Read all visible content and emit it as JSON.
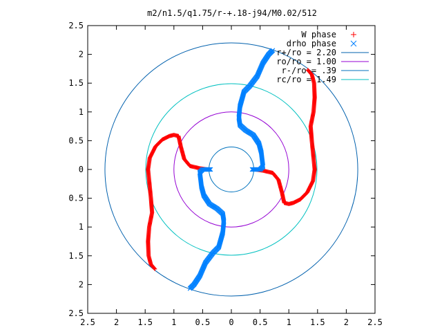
{
  "chart_data": {
    "type": "scatter",
    "title": "m2/n1.5/q1.75/r-+.18-j94/M0.02/512",
    "xlabel": "",
    "ylabel": "",
    "xlim": [
      -2.5,
      2.5
    ],
    "ylim": [
      -2.5,
      2.5
    ],
    "x_ticks": [
      "2.5",
      "2",
      "1.5",
      "1",
      "0.5",
      "0",
      "0.5",
      "1",
      "1.5",
      "2",
      "2.5"
    ],
    "y_ticks": [
      "2.5",
      "2",
      "1.5",
      "1",
      "0.5",
      "0",
      "0.5",
      "1",
      "1.5",
      "2",
      "2.5"
    ],
    "grid": false,
    "legend_position": "top-right",
    "series": [
      {
        "name": "W phase",
        "marker": "+",
        "color": "#ff0000",
        "arms": [
          [
            [
              -0.42,
              0
            ],
            [
              -0.55,
              0.02
            ],
            [
              -0.72,
              0.06
            ],
            [
              -0.82,
              0.18
            ],
            [
              -0.88,
              0.4
            ],
            [
              -0.92,
              0.58
            ],
            [
              -1.0,
              0.6
            ],
            [
              -1.08,
              0.58
            ],
            [
              -1.2,
              0.52
            ],
            [
              -1.32,
              0.4
            ],
            [
              -1.42,
              0.2
            ],
            [
              -1.45,
              0
            ],
            [
              -1.43,
              -0.2
            ],
            [
              -1.4,
              -0.5
            ],
            [
              -1.38,
              -0.75
            ],
            [
              -1.43,
              -1.0
            ],
            [
              -1.45,
              -1.25
            ],
            [
              -1.44,
              -1.5
            ],
            [
              -1.4,
              -1.65
            ],
            [
              -1.33,
              -1.73
            ]
          ],
          [
            [
              0.42,
              0
            ],
            [
              0.55,
              -0.02
            ],
            [
              0.72,
              -0.06
            ],
            [
              0.82,
              -0.18
            ],
            [
              0.88,
              -0.4
            ],
            [
              0.92,
              -0.58
            ],
            [
              1.0,
              -0.6
            ],
            [
              1.08,
              -0.58
            ],
            [
              1.2,
              -0.52
            ],
            [
              1.32,
              -0.4
            ],
            [
              1.42,
              -0.2
            ],
            [
              1.45,
              0
            ],
            [
              1.43,
              0.2
            ],
            [
              1.4,
              0.5
            ],
            [
              1.38,
              0.75
            ],
            [
              1.43,
              1.0
            ],
            [
              1.45,
              1.25
            ],
            [
              1.44,
              1.5
            ],
            [
              1.4,
              1.65
            ],
            [
              1.33,
              1.73
            ]
          ]
        ]
      },
      {
        "name": "drho phase",
        "marker": "x",
        "color": "#0080ff",
        "arms": [
          [
            [
              0.72,
              2.07
            ],
            [
              0.65,
              2.0
            ],
            [
              0.55,
              1.85
            ],
            [
              0.45,
              1.62
            ],
            [
              0.32,
              1.45
            ],
            [
              0.22,
              1.35
            ],
            [
              0.15,
              1.1
            ],
            [
              0.13,
              0.9
            ],
            [
              0.15,
              0.77
            ],
            [
              0.25,
              0.68
            ],
            [
              0.38,
              0.6
            ],
            [
              0.48,
              0.45
            ],
            [
              0.52,
              0.3
            ],
            [
              0.55,
              0.05
            ],
            [
              0.5,
              0.0
            ],
            [
              0.36,
              0.0
            ]
          ],
          [
            [
              -0.72,
              -2.07
            ],
            [
              -0.65,
              -2.0
            ],
            [
              -0.55,
              -1.85
            ],
            [
              -0.45,
              -1.62
            ],
            [
              -0.32,
              -1.45
            ],
            [
              -0.22,
              -1.35
            ],
            [
              -0.15,
              -1.1
            ],
            [
              -0.13,
              -0.9
            ],
            [
              -0.15,
              -0.77
            ],
            [
              -0.25,
              -0.68
            ],
            [
              -0.38,
              -0.6
            ],
            [
              -0.48,
              -0.45
            ],
            [
              -0.52,
              -0.3
            ],
            [
              -0.55,
              -0.05
            ],
            [
              -0.5,
              0.0
            ],
            [
              -0.36,
              0.0
            ]
          ]
        ]
      },
      {
        "name": "r+/ro = 2.20",
        "type": "circle",
        "radius": 2.2,
        "color": "#0060ad"
      },
      {
        "name": "ro/ro = 1.00",
        "type": "circle",
        "radius": 1.0,
        "color": "#9400d3"
      },
      {
        "name": "r-/ro = .39",
        "type": "circle",
        "radius": 0.39,
        "color": "#0072bd"
      },
      {
        "name": "rc/ro = 1.49",
        "type": "circle",
        "radius": 1.49,
        "color": "#00c0c0"
      }
    ]
  }
}
